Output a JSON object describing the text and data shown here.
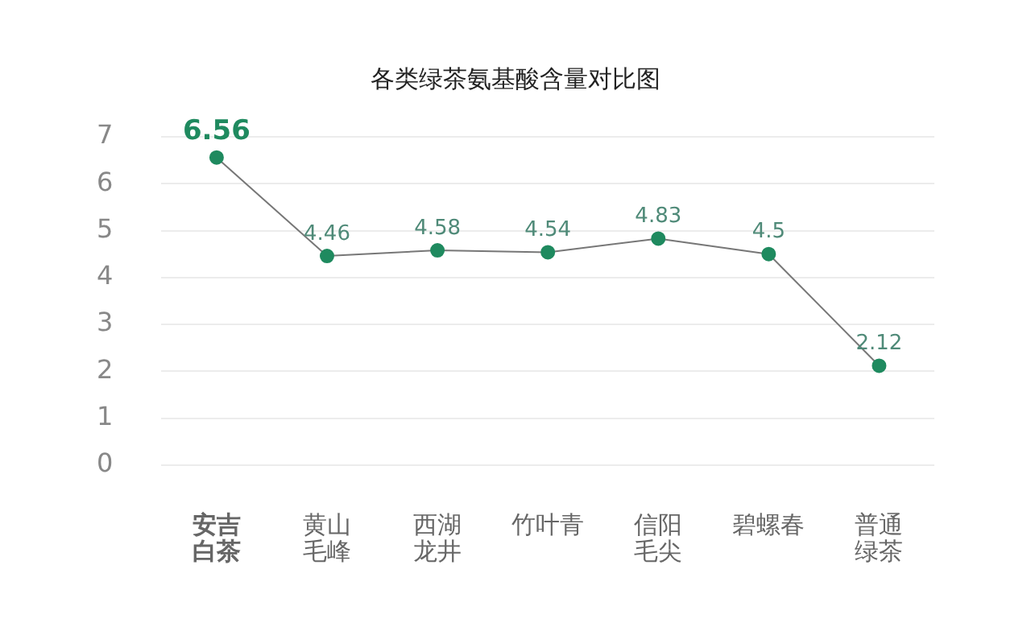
{
  "chart_data": {
    "type": "line",
    "title": "各类绿茶氨基酸含量对比图",
    "categories": [
      "安吉白茶",
      "黄山毛峰",
      "西湖龙井",
      "竹叶青",
      "信阳毛尖",
      "碧螺春",
      "普通绿茶"
    ],
    "series": [
      {
        "color": "#1f8a5f",
        "values": [
          6.56,
          4.46,
          4.58,
          4.54,
          4.83,
          4.5,
          2.12
        ]
      }
    ],
    "ylim": [
      0,
      7
    ],
    "yticks": [
      0,
      1,
      2,
      3,
      4,
      5,
      6,
      7
    ],
    "grid": "y",
    "legend": false,
    "marker": "circle",
    "line_style": "solid",
    "data_labels": true
  }
}
